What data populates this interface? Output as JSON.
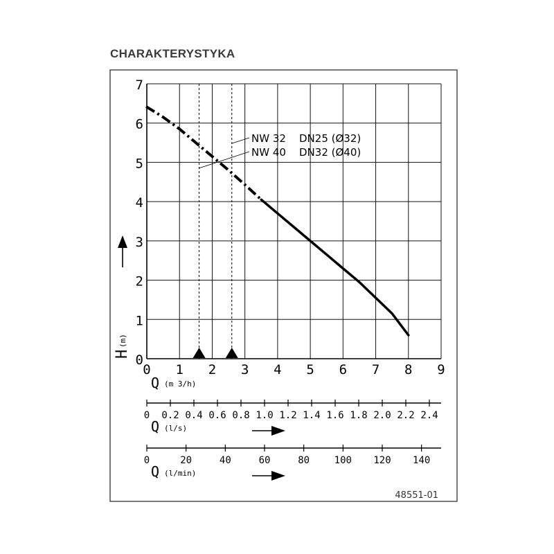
{
  "title": "CHARAKTERYSTYKA",
  "figure_code": "48551-01",
  "chart_data": {
    "type": "line",
    "y_axis": {
      "label": "H",
      "unit": "(m)",
      "ticks": [
        0,
        1,
        2,
        3,
        4,
        5,
        6,
        7
      ],
      "ylim": [
        0,
        7
      ]
    },
    "x_axis": {
      "label": "Q",
      "unit": "(m 3/h)",
      "ticks": [
        0,
        1,
        2,
        3,
        4,
        5,
        6,
        7,
        8,
        9
      ],
      "xlim": [
        0,
        9
      ]
    },
    "secondary_axes": [
      {
        "label": "Q",
        "unit": "(l/s)",
        "ticks": [
          "0",
          "0.2",
          "0.4",
          "0.6",
          "0.8",
          "1.0",
          "1.2",
          "1.4",
          "1.6",
          "1.8",
          "2.0",
          "2.2",
          "2.4"
        ],
        "values": [
          0,
          0.2,
          0.4,
          0.6,
          0.8,
          1.0,
          1.2,
          1.4,
          1.6,
          1.8,
          2.0,
          2.2,
          2.4
        ]
      },
      {
        "label": "Q",
        "unit": "(l/min)",
        "ticks": [
          "0",
          "20",
          "40",
          "60",
          "80",
          "100",
          "120",
          "140"
        ],
        "values": [
          0,
          20,
          40,
          60,
          80,
          100,
          120,
          140
        ]
      }
    ],
    "grid": true,
    "curve": {
      "dashdot_segment": [
        [
          -0.02,
          6.42
        ],
        [
          0.5,
          6.15
        ],
        [
          1.0,
          5.85
        ],
        [
          1.5,
          5.5
        ],
        [
          2.0,
          5.15
        ],
        [
          2.5,
          4.8
        ],
        [
          3.0,
          4.43
        ],
        [
          3.5,
          4.05
        ]
      ],
      "solid_segment": [
        [
          3.5,
          4.05
        ],
        [
          4.0,
          3.7
        ],
        [
          4.5,
          3.35
        ],
        [
          5.0,
          3.0
        ],
        [
          5.5,
          2.65
        ],
        [
          6.0,
          2.3
        ],
        [
          6.5,
          1.95
        ],
        [
          7.0,
          1.55
        ],
        [
          7.5,
          1.15
        ],
        [
          8.0,
          0.6
        ]
      ]
    },
    "series_labels": [
      {
        "nw": "NW 32",
        "dn": "DN25 (Ø32)"
      },
      {
        "nw": "NW 40",
        "dn": "DN32 (Ø40)"
      }
    ],
    "markers": [
      {
        "x": 1.6,
        "shape": "triangle"
      },
      {
        "x": 2.6,
        "shape": "triangle"
      }
    ]
  }
}
